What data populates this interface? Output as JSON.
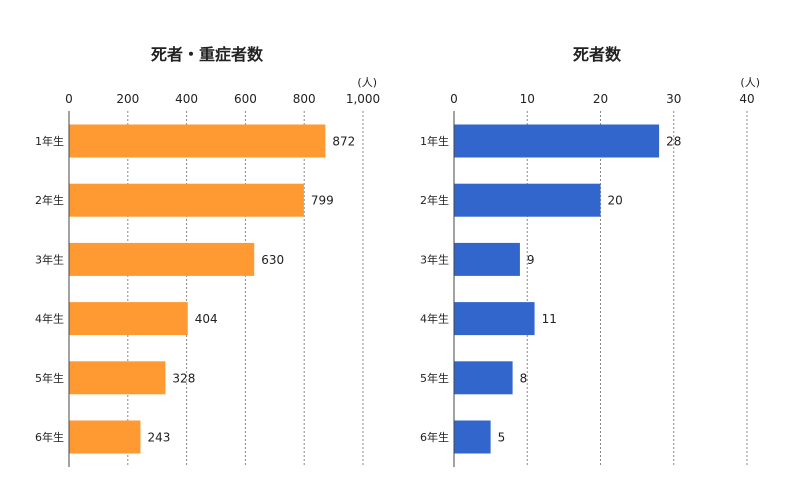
{
  "chart_data": [
    {
      "type": "bar",
      "orientation": "horizontal",
      "title": "死者・重症者数",
      "unit": "(人)",
      "categories": [
        "1年生",
        "2年生",
        "3年生",
        "4年生",
        "5年生",
        "6年生"
      ],
      "values": [
        872,
        799,
        630,
        404,
        328,
        243
      ],
      "xlim": [
        0,
        1000
      ],
      "ticks": [
        0,
        200,
        400,
        600,
        800,
        1000
      ],
      "tick_labels": [
        "0",
        "200",
        "400",
        "600",
        "800",
        "1,000"
      ],
      "color": "#FF9A33",
      "grid": true
    },
    {
      "type": "bar",
      "orientation": "horizontal",
      "title": "死者数",
      "unit": "(人)",
      "categories": [
        "1年生",
        "2年生",
        "3年生",
        "4年生",
        "5年生",
        "6年生"
      ],
      "values": [
        28,
        20,
        9,
        11,
        8,
        5
      ],
      "xlim": [
        0,
        40
      ],
      "ticks": [
        0,
        10,
        20,
        30,
        40
      ],
      "tick_labels": [
        "0",
        "10",
        "20",
        "30",
        "40"
      ],
      "color": "#3366CC",
      "grid": true
    }
  ]
}
